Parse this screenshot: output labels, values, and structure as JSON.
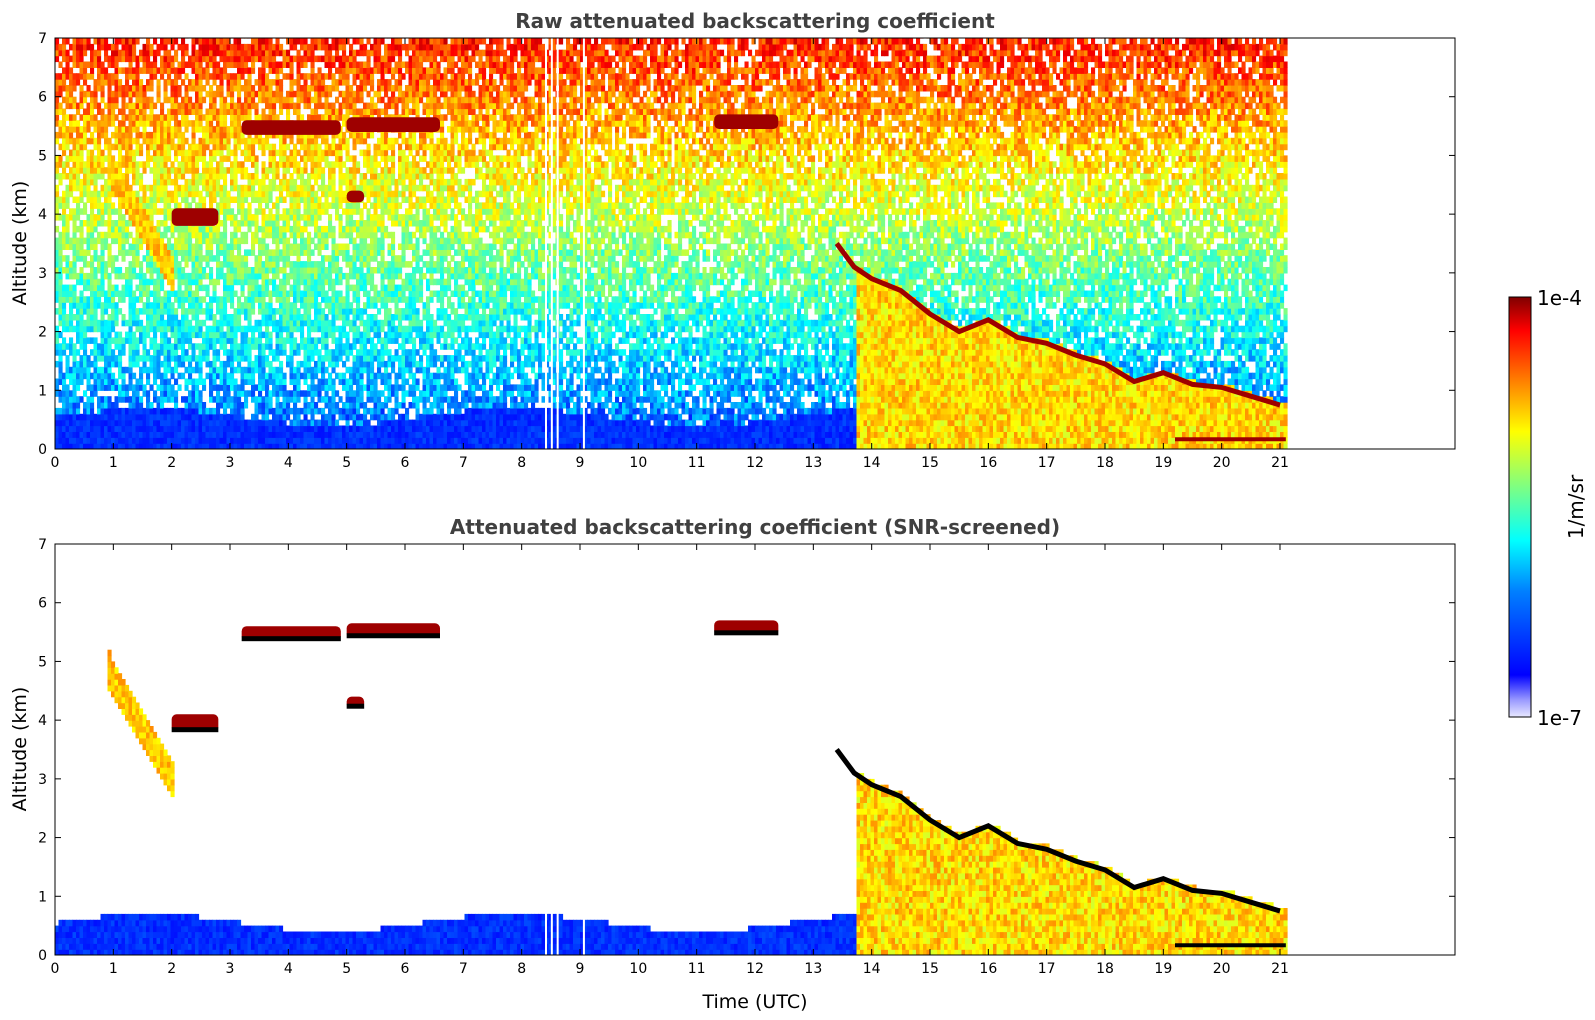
{
  "figure": {
    "xlabel": "Time (UTC)"
  },
  "chart_data": [
    {
      "type": "heatmap",
      "title": "Raw attenuated backscattering coefficient",
      "xlabel": "",
      "ylabel": "Altitude (km)",
      "xlim": [
        0,
        24
      ],
      "ylim": [
        0,
        7
      ],
      "x_ticks": [
        "0",
        "1",
        "2",
        "3",
        "4",
        "5",
        "6",
        "7",
        "8",
        "9",
        "10",
        "11",
        "12",
        "13",
        "14",
        "15",
        "16",
        "17",
        "18",
        "19",
        "20",
        "21"
      ],
      "y_ticks": [
        "0",
        "1",
        "2",
        "3",
        "4",
        "5",
        "6",
        "7"
      ],
      "data_end_time": 21.1,
      "screened": false,
      "colormap": "jet",
      "features": {
        "near_surface_layer": {
          "x": [
            0,
            13.7
          ],
          "top_km": 0.5,
          "level": 0.12
        },
        "background_gradient": "noise level rising from blue near surface to red near 7 km",
        "high_cloud_layers": [
          {
            "x": [
              3.2,
              4.9
            ],
            "y": [
              5.35,
              5.6
            ]
          },
          {
            "x": [
              5.0,
              6.6
            ],
            "y": [
              5.4,
              5.65
            ]
          },
          {
            "x": [
              11.3,
              12.4
            ],
            "y": [
              5.45,
              5.7
            ]
          },
          {
            "x": [
              2.0,
              2.8
            ],
            "y": [
              3.8,
              4.1
            ]
          },
          {
            "x": [
              5.0,
              5.3
            ],
            "y": [
              4.2,
              4.4
            ]
          }
        ],
        "fall_streak": {
          "x": [
            0.9,
            2.0
          ],
          "y": [
            2.9,
            4.8
          ]
        },
        "boundary_layer_cloud_top": {
          "x": [
            13.4,
            13.7,
            14.0,
            14.5,
            15.0,
            15.5,
            16.0,
            16.5,
            17.0,
            17.5,
            18.0,
            18.5,
            19.0,
            19.5,
            20.0,
            20.5,
            21.0
          ],
          "y": [
            3.5,
            3.1,
            2.9,
            2.7,
            2.3,
            2.0,
            2.2,
            1.9,
            1.8,
            1.6,
            1.45,
            1.15,
            1.3,
            1.1,
            1.05,
            0.9,
            0.75
          ]
        },
        "boundary_layer_fill": {
          "x": [
            13.7,
            21.1
          ],
          "level": 0.65
        },
        "surface_layer": {
          "x": [
            19.2,
            21.1
          ],
          "y": 0.15
        }
      }
    },
    {
      "type": "heatmap",
      "title": "Attenuated backscattering coefficient (SNR-screened)",
      "xlabel": "Time (UTC)",
      "ylabel": "Altitude (km)",
      "xlim": [
        0,
        24
      ],
      "ylim": [
        0,
        7
      ],
      "x_ticks": [
        "0",
        "1",
        "2",
        "3",
        "4",
        "5",
        "6",
        "7",
        "8",
        "9",
        "10",
        "11",
        "12",
        "13",
        "14",
        "15",
        "16",
        "17",
        "18",
        "19",
        "20",
        "21"
      ],
      "y_ticks": [
        "0",
        "1",
        "2",
        "3",
        "4",
        "5",
        "6",
        "7"
      ],
      "data_end_time": 21.1,
      "screened": true,
      "colormap": "jet"
    }
  ],
  "colorbar": {
    "label": "1/m/sr",
    "max_label": "1e-4",
    "min_label": "1e-7",
    "scale": "log",
    "range": [
      1e-07,
      0.0001
    ]
  },
  "colors": {
    "jet": [
      "#00008f",
      "#0000ff",
      "#00ffff",
      "#80ff80",
      "#ffff00",
      "#ff8000",
      "#ff0000",
      "#800000"
    ],
    "title": "#404040",
    "cloud_top_screened": "#000000"
  }
}
